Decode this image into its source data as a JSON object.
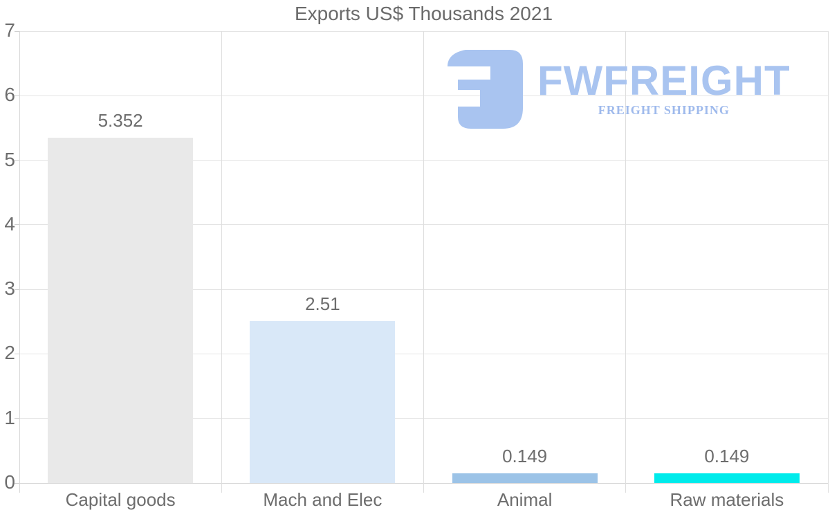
{
  "chart_data": {
    "type": "bar",
    "title": "Exports US$ Thousands 2021",
    "categories": [
      "Capital goods",
      "Mach and Elec",
      "Animal",
      "Raw materials"
    ],
    "values": [
      5.352,
      2.51,
      0.149,
      0.149
    ],
    "value_labels": [
      "5.352",
      "2.51",
      "0.149",
      "0.149"
    ],
    "bar_colors": [
      "#e9e9e9",
      "#d9e8f8",
      "#9cc3e7",
      "#00ebeb"
    ],
    "xlabel": "",
    "ylabel": "",
    "ylim": [
      0,
      7
    ],
    "yticks": [
      0,
      1,
      2,
      3,
      4,
      5,
      6,
      7
    ],
    "grid": "on",
    "legend": "none"
  },
  "watermark": {
    "name": "FWFREIGHT",
    "tagline": "FREIGHT SHIPPING",
    "color": "#a9c4f0",
    "tagline_color": "#9fbaec",
    "icon": "fwfreight-logo-icon"
  }
}
